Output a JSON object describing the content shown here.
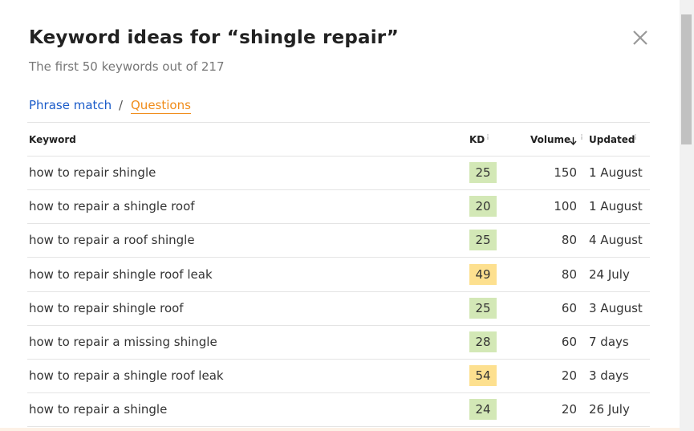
{
  "header": {
    "title": "Keyword ideas for “shingle repair”",
    "subtitle": "The first 50 keywords out of 217"
  },
  "tabs": {
    "items": [
      "Phrase match",
      "Questions"
    ],
    "separator": "/"
  },
  "table": {
    "columns": [
      "Keyword",
      "KD",
      "Volume",
      "Updated"
    ],
    "rows": [
      [
        "how to repair shingle",
        25,
        150,
        "1 August"
      ],
      [
        "how to repair a shingle roof",
        20,
        100,
        "1 August"
      ],
      [
        "how to repair a roof shingle",
        25,
        80,
        "4 August"
      ],
      [
        "how to repair shingle roof leak",
        49,
        80,
        "24 July"
      ],
      [
        "how to repair shingle roof",
        25,
        60,
        "3 August"
      ],
      [
        "how to repair a missing shingle",
        28,
        60,
        "7 days"
      ],
      [
        "how to repair a shingle roof leak",
        54,
        20,
        "3 days"
      ],
      [
        "how to repair a shingle",
        24,
        20,
        "26 July"
      ]
    ]
  }
}
